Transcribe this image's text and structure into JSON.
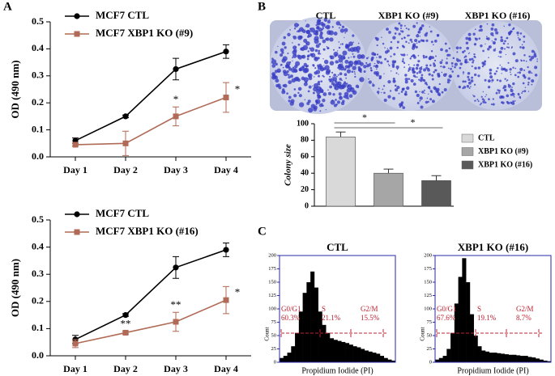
{
  "panel_labels": [
    "A",
    "B",
    "C"
  ],
  "plates": {
    "labels": [
      "CTL",
      "XBP1 KO (#9)",
      "XBP1 KO (#16)"
    ]
  },
  "chart_data": [
    {
      "type": "line",
      "ylabel": "OD (490 nm)",
      "categories": [
        "Day 1",
        "Day 2",
        "Day 3",
        "Day 4"
      ],
      "series": [
        {
          "name": "MCF7 CTL",
          "color": "#000000",
          "values": [
            0.06,
            0.15,
            0.325,
            0.39
          ],
          "errors": [
            0.01,
            0.005,
            0.04,
            0.025
          ]
        },
        {
          "name": "MCF7 XBP1 KO (#9)",
          "color": "#b06a55",
          "values": [
            0.045,
            0.05,
            0.15,
            0.22
          ],
          "errors": [
            0.005,
            0.045,
            0.035,
            0.055
          ]
        }
      ],
      "ylim": [
        0,
        0.5
      ],
      "yticks": [
        {
          "value": 0,
          "label": "0.0"
        },
        0.1,
        0.2,
        0.3,
        0.4,
        0.5
      ],
      "legend": "top-left",
      "annotations": [
        {
          "text": "*",
          "at": "Day 3"
        },
        {
          "text": "*",
          "at": "Day 4"
        }
      ]
    },
    {
      "type": "line",
      "ylabel": "OD (490 nm)",
      "categories": [
        "Day 1",
        "Day 2",
        "Day 3",
        "Day 4"
      ],
      "series": [
        {
          "name": "MCF7 CTL",
          "color": "#000000",
          "values": [
            0.06,
            0.15,
            0.325,
            0.39
          ],
          "errors": [
            0.015,
            0.005,
            0.04,
            0.025
          ]
        },
        {
          "name": "MCF7 XBP1 KO (#16)",
          "color": "#b06a55",
          "values": [
            0.045,
            0.085,
            0.125,
            0.205
          ],
          "errors": [
            0.015,
            0.005,
            0.035,
            0.05
          ]
        }
      ],
      "ylim": [
        0,
        0.5
      ],
      "yticks": [
        {
          "value": 0,
          "label": "0.0"
        },
        0.1,
        0.2,
        0.3,
        0.4,
        0.5
      ],
      "legend": "top-left",
      "annotations": [
        {
          "text": "**",
          "at": "Day 2"
        },
        {
          "text": "**",
          "at": "Day 3"
        },
        {
          "text": "*",
          "at": "Day 4"
        }
      ]
    },
    {
      "type": "bar",
      "ylabel": "Colony size",
      "categories": [
        "CTL",
        "XBP1 KO (#9)",
        "XBP1 KO (#16)"
      ],
      "values": [
        84,
        40,
        31
      ],
      "errors": [
        6,
        5,
        6
      ],
      "colors": [
        "#d9d9d9",
        "#a6a6a6",
        "#595959"
      ],
      "ylim": [
        0,
        100
      ],
      "yticks": [
        0,
        20,
        40,
        60,
        80,
        100
      ],
      "legend": "right",
      "annotations": [
        {
          "text": "*",
          "from": "CTL",
          "to": "XBP1 KO (#9)"
        },
        {
          "text": "*",
          "from": "CTL",
          "to": "XBP1 KO (#16)"
        }
      ]
    },
    {
      "type": "histogram",
      "title": "CTL",
      "xlabel": "Propidium Iodide (PI)",
      "ylabel": "Count",
      "color": "#000000",
      "values": [
        8,
        12,
        18,
        30,
        55,
        95,
        130,
        150,
        170,
        140,
        95,
        70,
        55,
        45,
        42,
        40,
        38,
        36,
        33,
        30,
        28,
        25,
        22,
        20,
        18,
        16,
        12,
        8,
        5,
        3
      ],
      "ylim": [
        0,
        200
      ],
      "yticks": [
        0,
        25,
        50,
        75,
        100,
        125,
        150,
        175,
        200
      ],
      "gates": [
        {
          "label": "G0/G1",
          "percent": "60.3%"
        },
        {
          "label": "S",
          "percent": "21.1%"
        },
        {
          "label": "G2/M",
          "percent": "15.5%"
        }
      ]
    },
    {
      "type": "histogram",
      "title": "XBP1 KO (#16)",
      "xlabel": "Propidium Iodide (PI)",
      "ylabel": "Count",
      "color": "#000000",
      "values": [
        5,
        8,
        12,
        25,
        55,
        110,
        160,
        195,
        150,
        90,
        50,
        30,
        22,
        20,
        18,
        18,
        17,
        16,
        15,
        14,
        14,
        13,
        12,
        12,
        10,
        9,
        7,
        5,
        3,
        2
      ],
      "ylim": [
        0,
        200
      ],
      "yticks": [
        0,
        25,
        50,
        75,
        100,
        125,
        150,
        175,
        200
      ],
      "gates": [
        {
          "label": "G0/G1",
          "percent": "67.6%"
        },
        {
          "label": "S",
          "percent": "19.1%"
        },
        {
          "label": "G2/M",
          "percent": "8.7%"
        }
      ]
    }
  ]
}
